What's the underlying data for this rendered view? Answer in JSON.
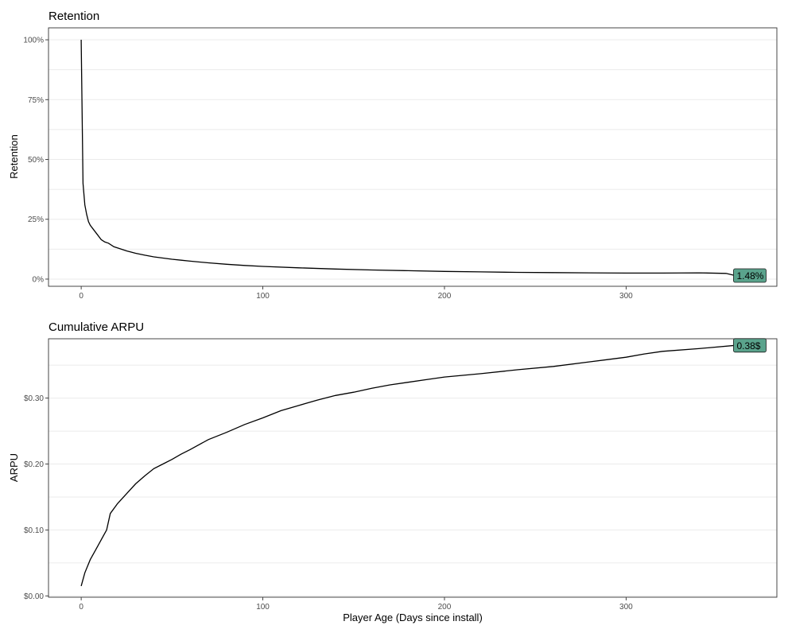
{
  "colors": {
    "label_fill": "#5aa38c",
    "line": "#000000",
    "grid": "#ebebeb",
    "border": "#333333"
  },
  "xlabel": "Player Age (Days since install)",
  "chart_data": [
    {
      "type": "line",
      "title": "Retention",
      "xlabel": "Player Age (Days since install)",
      "ylabel": "Retention",
      "xlim": [
        -18,
        383
      ],
      "ylim": [
        -0.03,
        1.05
      ],
      "x_ticks": [
        0,
        100,
        200,
        300
      ],
      "x_tick_labels": [
        "0",
        "100",
        "200",
        "300"
      ],
      "y_ticks": [
        0,
        0.25,
        0.5,
        0.75,
        1.0
      ],
      "y_tick_labels": [
        "0%",
        "25%",
        "50%",
        "75%",
        "100%"
      ],
      "grid": true,
      "legend": "none",
      "end_label": "1.48%",
      "series": [
        {
          "x": [
            0,
            1,
            2,
            3,
            4,
            5,
            7,
            9,
            11,
            13,
            15,
            18,
            21,
            25,
            30,
            35,
            40,
            45,
            50,
            55,
            60,
            70,
            80,
            90,
            100,
            120,
            140,
            160,
            180,
            200,
            220,
            240,
            260,
            280,
            300,
            320,
            340,
            355,
            360
          ],
          "y": [
            1.0,
            0.4,
            0.31,
            0.27,
            0.24,
            0.225,
            0.205,
            0.185,
            0.165,
            0.155,
            0.15,
            0.135,
            0.128,
            0.118,
            0.108,
            0.1,
            0.093,
            0.088,
            0.083,
            0.079,
            0.075,
            0.068,
            0.062,
            0.057,
            0.053,
            0.047,
            0.042,
            0.038,
            0.035,
            0.032,
            0.03,
            0.028,
            0.027,
            0.026,
            0.025,
            0.025,
            0.026,
            0.024,
            0.0148
          ]
        }
      ]
    },
    {
      "type": "line",
      "title": "Cumulative ARPU",
      "xlabel": "Player Age (Days since install)",
      "ylabel": "ARPU",
      "xlim": [
        -18,
        383
      ],
      "ylim": [
        -0.002,
        0.39
      ],
      "x_ticks": [
        0,
        100,
        200,
        300
      ],
      "x_tick_labels": [
        "0",
        "100",
        "200",
        "300"
      ],
      "y_ticks": [
        0,
        0.1,
        0.2,
        0.3
      ],
      "y_tick_labels": [
        "$0.00",
        "$0.10",
        "$0.20",
        "$0.30"
      ],
      "grid": true,
      "legend": "none",
      "end_label": "0.38$",
      "series": [
        {
          "x": [
            0,
            2,
            5,
            8,
            11,
            14,
            16,
            20,
            25,
            30,
            35,
            40,
            45,
            50,
            55,
            60,
            70,
            80,
            90,
            100,
            110,
            120,
            130,
            140,
            150,
            160,
            170,
            180,
            190,
            200,
            220,
            240,
            260,
            280,
            300,
            310,
            320,
            340,
            360
          ],
          "y": [
            0.015,
            0.035,
            0.055,
            0.07,
            0.085,
            0.1,
            0.125,
            0.14,
            0.155,
            0.17,
            0.182,
            0.193,
            0.2,
            0.207,
            0.215,
            0.222,
            0.237,
            0.248,
            0.26,
            0.27,
            0.281,
            0.289,
            0.297,
            0.304,
            0.309,
            0.315,
            0.32,
            0.324,
            0.328,
            0.332,
            0.337,
            0.343,
            0.348,
            0.355,
            0.362,
            0.367,
            0.371,
            0.375,
            0.38
          ]
        }
      ]
    }
  ]
}
